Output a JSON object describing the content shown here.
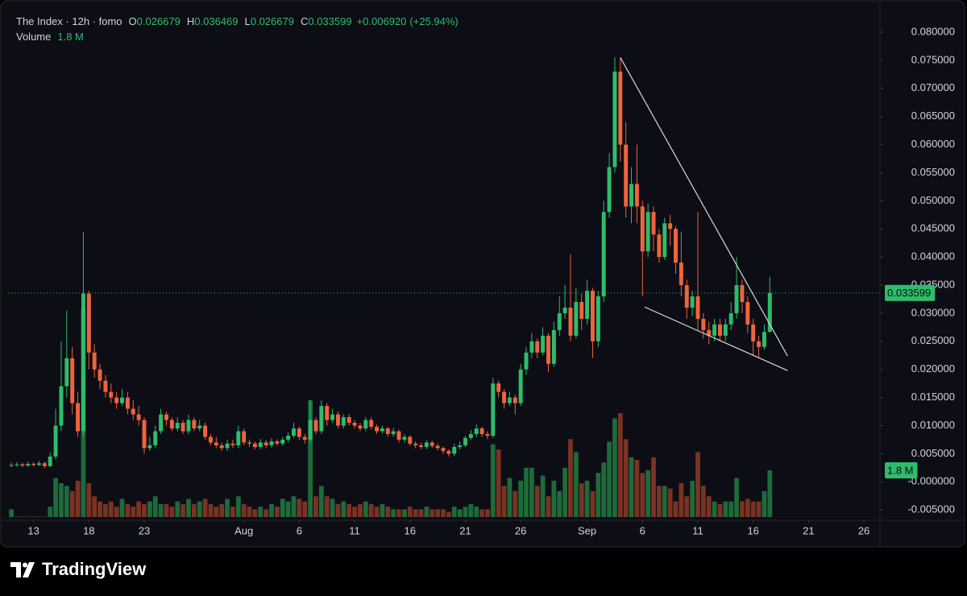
{
  "chart_data": {
    "type": "candlestick",
    "title": "The Index · 12h · fomo",
    "ohlc_prefixes": [
      "O",
      "H",
      "L",
      "C"
    ],
    "change": {
      "value": 0.00692,
      "label": "+0.006920"
    },
    "change_pct": {
      "value": 25.94,
      "label": "(+25.94%)"
    },
    "volume_title": "Volume",
    "volume_value_label": "1.8 M",
    "up_color": "#2dbd6b",
    "down_color": "#f0643c",
    "volume_up_color": "#1d6b3b",
    "volume_down_color": "#7a3323",
    "line_color": "#d8d8d8",
    "open": [
      0.003,
      0.003,
      0.0031,
      0.0029,
      0.0032,
      0.003,
      0.0033,
      0.0028,
      0.0045,
      0.01,
      0.017,
      0.022,
      0.014,
      0.009,
      0.0335,
      0.023,
      0.02,
      0.018,
      0.016,
      0.015,
      0.014,
      0.015,
      0.013,
      0.012,
      0.011,
      0.006,
      0.0065,
      0.009,
      0.012,
      0.011,
      0.0095,
      0.0105,
      0.009,
      0.011,
      0.0095,
      0.01,
      0.008,
      0.007,
      0.0065,
      0.006,
      0.0068,
      0.0065,
      0.009,
      0.007,
      0.0068,
      0.0062,
      0.007,
      0.0065,
      0.0072,
      0.0068,
      0.0075,
      0.0082,
      0.0095,
      0.008,
      0.0075,
      0.011,
      0.009,
      0.0135,
      0.011,
      0.012,
      0.01,
      0.0115,
      0.0105,
      0.01,
      0.0095,
      0.011,
      0.0098,
      0.009,
      0.0095,
      0.0085,
      0.009,
      0.0075,
      0.008,
      0.0068,
      0.0065,
      0.0062,
      0.007,
      0.0064,
      0.006,
      0.0055,
      0.005,
      0.0062,
      0.0065,
      0.0078,
      0.0085,
      0.0095,
      0.0085,
      0.0082,
      0.0175,
      0.016,
      0.014,
      0.015,
      0.014,
      0.02,
      0.023,
      0.025,
      0.023,
      0.026,
      0.021,
      0.027,
      0.03,
      0.031,
      0.026,
      0.032,
      0.029,
      0.034,
      0.025,
      0.033,
      0.048,
      0.056,
      0.073,
      0.06,
      0.049,
      0.053,
      0.049,
      0.041,
      0.048,
      0.044,
      0.04,
      0.046,
      0.045,
      0.039,
      0.035,
      0.031,
      0.033,
      0.029,
      0.027,
      0.026,
      0.028,
      0.026,
      0.028,
      0.03,
      0.035,
      0.032,
      0.028,
      0.025,
      0.024,
      0.026679
    ],
    "high": [
      0.0034,
      0.0035,
      0.0034,
      0.0036,
      0.0035,
      0.0037,
      0.0036,
      0.0052,
      0.013,
      0.025,
      0.0305,
      0.024,
      0.016,
      0.0445,
      0.034,
      0.0245,
      0.021,
      0.019,
      0.0175,
      0.016,
      0.0165,
      0.016,
      0.0145,
      0.0135,
      0.0115,
      0.008,
      0.01,
      0.013,
      0.0125,
      0.0115,
      0.0115,
      0.011,
      0.012,
      0.0115,
      0.011,
      0.0105,
      0.0085,
      0.008,
      0.007,
      0.0075,
      0.0075,
      0.01,
      0.0095,
      0.0075,
      0.0072,
      0.0076,
      0.0074,
      0.0078,
      0.0076,
      0.008,
      0.0088,
      0.0105,
      0.0098,
      0.0085,
      0.0145,
      0.0115,
      0.0145,
      0.014,
      0.013,
      0.0125,
      0.012,
      0.012,
      0.011,
      0.0105,
      0.0115,
      0.0115,
      0.0102,
      0.01,
      0.0098,
      0.0096,
      0.0093,
      0.0085,
      0.0083,
      0.0072,
      0.007,
      0.0074,
      0.0073,
      0.0068,
      0.0063,
      0.0058,
      0.0068,
      0.0072,
      0.0082,
      0.0092,
      0.0102,
      0.0098,
      0.009,
      0.0185,
      0.018,
      0.0165,
      0.016,
      0.0155,
      0.021,
      0.024,
      0.0265,
      0.0255,
      0.0275,
      0.0265,
      0.0285,
      0.033,
      0.035,
      0.0405,
      0.0345,
      0.0335,
      0.036,
      0.0345,
      0.034,
      0.05,
      0.0585,
      0.0755,
      0.0755,
      0.064,
      0.056,
      0.06,
      0.05,
      0.0495,
      0.049,
      0.045,
      0.047,
      0.0475,
      0.0455,
      0.0445,
      0.036,
      0.034,
      0.048,
      0.03,
      0.0285,
      0.029,
      0.029,
      0.029,
      0.032,
      0.04,
      0.036,
      0.033,
      0.029,
      0.026,
      0.028,
      0.036469
    ],
    "low": [
      0.0026,
      0.0027,
      0.0026,
      0.0027,
      0.0027,
      0.0028,
      0.0024,
      0.0026,
      0.004,
      0.009,
      0.015,
      0.012,
      0.008,
      0.008,
      0.02,
      0.0185,
      0.0165,
      0.015,
      0.014,
      0.013,
      0.0135,
      0.012,
      0.011,
      0.01,
      0.005,
      0.0055,
      0.006,
      0.0085,
      0.01,
      0.009,
      0.009,
      0.0085,
      0.0085,
      0.009,
      0.009,
      0.0075,
      0.0065,
      0.006,
      0.0055,
      0.0055,
      0.006,
      0.006,
      0.0065,
      0.0062,
      0.0058,
      0.0058,
      0.006,
      0.0061,
      0.0064,
      0.0064,
      0.007,
      0.0078,
      0.0075,
      0.0068,
      0.007,
      0.0085,
      0.0085,
      0.01,
      0.0105,
      0.0095,
      0.0095,
      0.01,
      0.0095,
      0.009,
      0.009,
      0.0093,
      0.0085,
      0.0086,
      0.008,
      0.008,
      0.007,
      0.007,
      0.0064,
      0.006,
      0.0058,
      0.0058,
      0.006,
      0.0056,
      0.005,
      0.0045,
      0.0046,
      0.0058,
      0.0062,
      0.0074,
      0.008,
      0.008,
      0.0076,
      0.0078,
      0.015,
      0.013,
      0.0135,
      0.012,
      0.0135,
      0.019,
      0.022,
      0.022,
      0.0225,
      0.0195,
      0.0205,
      0.026,
      0.029,
      0.025,
      0.0255,
      0.027,
      0.028,
      0.022,
      0.024,
      0.032,
      0.047,
      0.055,
      0.057,
      0.047,
      0.046,
      0.046,
      0.033,
      0.04,
      0.041,
      0.039,
      0.0395,
      0.042,
      0.037,
      0.033,
      0.029,
      0.0295,
      0.027,
      0.0255,
      0.0245,
      0.025,
      0.025,
      0.025,
      0.027,
      0.029,
      0.03,
      0.0265,
      0.0225,
      0.022,
      0.0235,
      0.026679
    ],
    "close": [
      0.003,
      0.0031,
      0.0029,
      0.0032,
      0.003,
      0.0033,
      0.0028,
      0.0045,
      0.01,
      0.017,
      0.022,
      0.014,
      0.009,
      0.0335,
      0.023,
      0.02,
      0.018,
      0.016,
      0.015,
      0.014,
      0.015,
      0.013,
      0.012,
      0.011,
      0.006,
      0.0065,
      0.009,
      0.012,
      0.011,
      0.0095,
      0.0105,
      0.009,
      0.011,
      0.0095,
      0.01,
      0.008,
      0.007,
      0.0065,
      0.006,
      0.0068,
      0.0065,
      0.009,
      0.007,
      0.0068,
      0.0062,
      0.007,
      0.0065,
      0.0072,
      0.0068,
      0.0075,
      0.0082,
      0.0095,
      0.008,
      0.0075,
      0.011,
      0.009,
      0.0135,
      0.011,
      0.012,
      0.01,
      0.0115,
      0.0105,
      0.01,
      0.0095,
      0.011,
      0.0098,
      0.009,
      0.0095,
      0.0085,
      0.009,
      0.0075,
      0.008,
      0.0068,
      0.0065,
      0.0062,
      0.007,
      0.0064,
      0.006,
      0.0055,
      0.005,
      0.0062,
      0.0065,
      0.0078,
      0.0085,
      0.0095,
      0.0085,
      0.0082,
      0.0175,
      0.016,
      0.014,
      0.015,
      0.014,
      0.02,
      0.023,
      0.025,
      0.023,
      0.026,
      0.021,
      0.027,
      0.03,
      0.031,
      0.026,
      0.032,
      0.029,
      0.034,
      0.025,
      0.033,
      0.048,
      0.056,
      0.073,
      0.06,
      0.049,
      0.053,
      0.049,
      0.041,
      0.048,
      0.044,
      0.04,
      0.046,
      0.045,
      0.039,
      0.035,
      0.031,
      0.033,
      0.029,
      0.027,
      0.026,
      0.028,
      0.026,
      0.028,
      0.03,
      0.035,
      0.032,
      0.028,
      0.025,
      0.024,
      0.026679,
      0.033599
    ],
    "volume": [
      300000,
      20000,
      20000,
      20000,
      20000,
      20000,
      20000,
      400000,
      1500000,
      1300000,
      1200000,
      1000000,
      1400000,
      8000000,
      1300000,
      800000,
      600000,
      500000,
      600000,
      400000,
      700000,
      500000,
      400000,
      600000,
      500000,
      600000,
      800000,
      500000,
      500000,
      400000,
      600000,
      500000,
      700000,
      500000,
      600000,
      700000,
      500000,
      400000,
      500000,
      700000,
      400000,
      800000,
      500000,
      400000,
      300000,
      400000,
      300000,
      500000,
      400000,
      700000,
      600000,
      800000,
      700000,
      600000,
      4500000,
      800000,
      1200000,
      800000,
      700000,
      500000,
      600000,
      500000,
      400000,
      500000,
      600000,
      500000,
      400000,
      500000,
      400000,
      300000,
      300000,
      300000,
      400000,
      300000,
      300000,
      400000,
      300000,
      300000,
      300000,
      200000,
      400000,
      300000,
      400000,
      500000,
      400000,
      300000,
      300000,
      2800000,
      2600000,
      1200000,
      1500000,
      1000000,
      1400000,
      1900000,
      1900000,
      1200000,
      1600000,
      800000,
      1400000,
      1000000,
      1900000,
      3000000,
      2500000,
      1300000,
      1400000,
      1000000,
      1700000,
      2100000,
      2900000,
      3800000,
      4000000,
      3000000,
      2300000,
      2200000,
      1700000,
      1800000,
      2300000,
      1200000,
      1200000,
      1100000,
      600000,
      1300000,
      800000,
      1400000,
      2500000,
      1200000,
      800000,
      600000,
      500000,
      600000,
      600000,
      1500000,
      600000,
      700000,
      600000,
      600000,
      1000000,
      1800000
    ],
    "xlim": [
      -0.6,
      156.9
    ],
    "xticks": [
      {
        "value": 4,
        "label": "13"
      },
      {
        "value": 14,
        "label": "18"
      },
      {
        "value": 24,
        "label": "23"
      },
      {
        "value": 42,
        "label": "Aug"
      },
      {
        "value": 52,
        "label": "6"
      },
      {
        "value": 62,
        "label": "11"
      },
      {
        "value": 72,
        "label": "16"
      },
      {
        "value": 82,
        "label": "21"
      },
      {
        "value": 92,
        "label": "26"
      },
      {
        "value": 104,
        "label": "Sep"
      },
      {
        "value": 114,
        "label": "6"
      },
      {
        "value": 124,
        "label": "11"
      },
      {
        "value": 134,
        "label": "16"
      },
      {
        "value": 144,
        "label": "21"
      },
      {
        "value": 154,
        "label": "26"
      }
    ],
    "ylim": [
      -0.0067,
      0.0843
    ],
    "yticks": [
      {
        "value": 0.08,
        "label": "0.080000"
      },
      {
        "value": 0.075,
        "label": "0.075000"
      },
      {
        "value": 0.07,
        "label": "0.070000"
      },
      {
        "value": 0.065,
        "label": "0.065000"
      },
      {
        "value": 0.06,
        "label": "0.060000"
      },
      {
        "value": 0.055,
        "label": "0.055000"
      },
      {
        "value": 0.05,
        "label": "0.050000"
      },
      {
        "value": 0.045,
        "label": "0.045000"
      },
      {
        "value": 0.04,
        "label": "0.040000"
      },
      {
        "value": 0.035,
        "label": "0.035000"
      },
      {
        "value": 0.03,
        "label": "0.030000"
      },
      {
        "value": 0.025,
        "label": "0.025000"
      },
      {
        "value": 0.02,
        "label": "0.020000"
      },
      {
        "value": 0.015,
        "label": "0.015000"
      },
      {
        "value": 0.01,
        "label": "0.010000"
      },
      {
        "value": 0.005,
        "label": "0.005000"
      },
      {
        "value": 0,
        "label": "-0.000000"
      },
      {
        "value": -0.005,
        "label": "-0.005000"
      }
    ],
    "trendlines": [
      {
        "x": [
          110,
          140.2
        ],
        "y": [
          0.0755,
          0.0224
        ]
      },
      {
        "x": [
          114.4,
          140.2
        ],
        "y": [
          0.0311,
          0.0198
        ]
      }
    ]
  },
  "footer": {
    "brand": "TradingView"
  }
}
